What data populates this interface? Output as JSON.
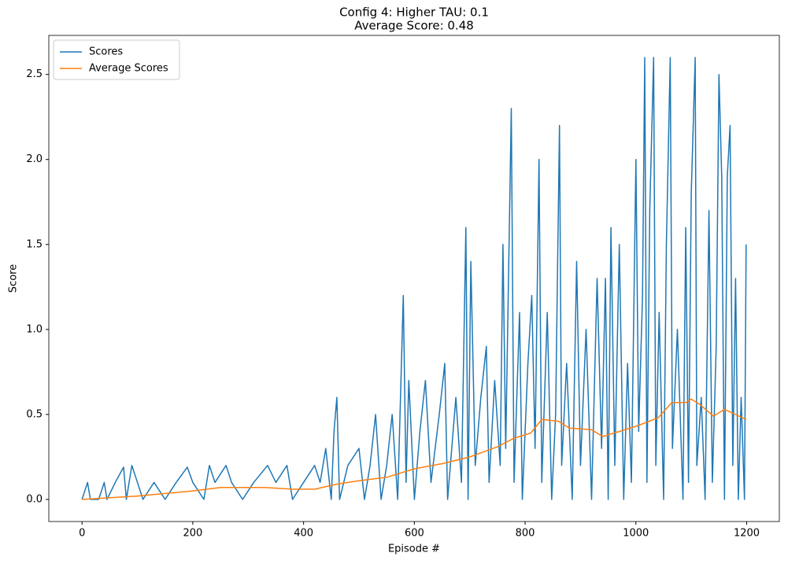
{
  "chart_data": {
    "type": "line",
    "title": "Config 4: Higher TAU: 0.1",
    "subtitle": "Average Score: 0.48",
    "x_label": "Episode #",
    "y_label": "Score",
    "legend": "upper left",
    "xlim": [
      -60,
      1259
    ],
    "ylim": [
      -0.13,
      2.73
    ],
    "xticks": [
      0,
      200,
      400,
      600,
      800,
      1000,
      1200
    ],
    "yticks": [
      {
        "value": 0,
        "label": "0.0"
      },
      0.5,
      {
        "value": 1,
        "label": "1.0"
      },
      1.5,
      {
        "value": 2,
        "label": "2.0"
      },
      2.5
    ],
    "series": [
      {
        "name": "Scores",
        "color": "#1f77b4",
        "x": [
          0,
          10,
          15,
          30,
          40,
          45,
          60,
          75,
          80,
          90,
          100,
          110,
          130,
          150,
          170,
          190,
          200,
          220,
          230,
          240,
          260,
          270,
          290,
          310,
          335,
          350,
          370,
          380,
          400,
          420,
          430,
          440,
          450,
          455,
          460,
          465,
          480,
          500,
          510,
          520,
          530,
          540,
          550,
          560,
          570,
          580,
          585,
          590,
          600,
          610,
          620,
          630,
          645,
          655,
          660,
          675,
          685,
          693,
          697,
          702,
          710,
          720,
          730,
          735,
          745,
          755,
          760,
          765,
          775,
          780,
          790,
          795,
          805,
          812,
          818,
          825,
          830,
          840,
          848,
          855,
          862,
          866,
          875,
          885,
          893,
          900,
          910,
          920,
          930,
          938,
          945,
          950,
          955,
          962,
          970,
          978,
          985,
          992,
          1000,
          1005,
          1012,
          1016,
          1020,
          1025,
          1032,
          1036,
          1042,
          1050,
          1055,
          1062,
          1066,
          1075,
          1085,
          1090,
          1095,
          1100,
          1107,
          1110,
          1118,
          1125,
          1132,
          1138,
          1145,
          1150,
          1155,
          1160,
          1165,
          1170,
          1175,
          1180,
          1185,
          1190,
          1196,
          1199
        ],
        "values": [
          0,
          0.1,
          0,
          0,
          0.1,
          0,
          0.1,
          0.19,
          0,
          0.2,
          0.1,
          0,
          0.1,
          0,
          0.1,
          0.19,
          0.1,
          0,
          0.2,
          0.1,
          0.2,
          0.1,
          0,
          0.1,
          0.2,
          0.1,
          0.2,
          0,
          0.1,
          0.2,
          0.1,
          0.3,
          0,
          0.4,
          0.6,
          0,
          0.2,
          0.3,
          0,
          0.2,
          0.5,
          0,
          0.2,
          0.5,
          0,
          1.2,
          0.1,
          0.7,
          0,
          0.4,
          0.7,
          0.1,
          0.5,
          0.8,
          0,
          0.6,
          0.1,
          1.6,
          0,
          1.4,
          0.2,
          0.6,
          0.9,
          0.1,
          0.7,
          0.2,
          1.5,
          0.3,
          2.3,
          0.1,
          1.1,
          0,
          0.8,
          1.2,
          0.3,
          2.0,
          0.1,
          1.1,
          0,
          0.5,
          2.2,
          0.2,
          0.8,
          0,
          1.4,
          0.2,
          1.0,
          0,
          1.3,
          0.3,
          1.3,
          0,
          1.6,
          0.2,
          1.5,
          0,
          0.8,
          0.1,
          2.0,
          0.4,
          1.2,
          2.6,
          0.1,
          1.7,
          2.6,
          0.2,
          1.1,
          0,
          1.5,
          2.6,
          0.3,
          1.0,
          0,
          1.6,
          0.1,
          1.8,
          2.6,
          0.2,
          0.6,
          0,
          1.7,
          0.1,
          0.9,
          2.5,
          1.9,
          0,
          1.9,
          2.2,
          0.2,
          1.3,
          0,
          0.6,
          0,
          1.5
        ]
      },
      {
        "name": "Average Scores",
        "color": "#ff7f0e",
        "x": [
          0,
          100,
          200,
          250,
          330,
          380,
          420,
          460,
          500,
          550,
          600,
          650,
          700,
          750,
          780,
          810,
          830,
          860,
          880,
          920,
          940,
          960,
          1000,
          1040,
          1065,
          1090,
          1100,
          1115,
          1140,
          1160,
          1180,
          1199
        ],
        "values": [
          0,
          0.02,
          0.05,
          0.07,
          0.07,
          0.06,
          0.06,
          0.09,
          0.11,
          0.13,
          0.18,
          0.21,
          0.25,
          0.31,
          0.36,
          0.39,
          0.47,
          0.46,
          0.42,
          0.41,
          0.37,
          0.39,
          0.43,
          0.48,
          0.57,
          0.57,
          0.59,
          0.56,
          0.49,
          0.53,
          0.5,
          0.47
        ]
      }
    ]
  }
}
